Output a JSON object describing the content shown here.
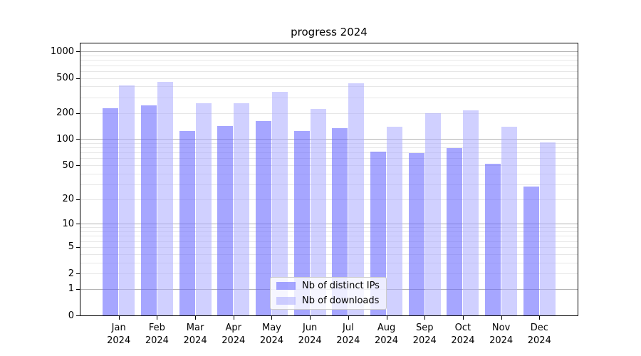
{
  "figure_title": "progress 2024",
  "chart_data": {
    "type": "bar",
    "title": "progress 2024",
    "categories": [
      "Jan 2024",
      "Feb 2024",
      "Mar 2024",
      "Apr 2024",
      "May 2024",
      "Jun 2024",
      "Jul 2024",
      "Aug 2024",
      "Sep 2024",
      "Oct 2024",
      "Nov 2024",
      "Dec 2024"
    ],
    "series": [
      {
        "name": "Nb of distinct IPs",
        "color": "rgba(102,102,255,0.58)",
        "values": [
          225,
          245,
          125,
          141,
          162,
          125,
          134,
          72,
          69,
          79,
          52,
          28
        ]
      },
      {
        "name": "Nb of downloads",
        "color": "rgba(170,170,255,0.55)",
        "values": [
          415,
          448,
          258,
          258,
          350,
          222,
          437,
          140,
          200,
          212,
          140,
          92
        ]
      }
    ],
    "xlabel": "",
    "ylabel": "",
    "y_axis": {
      "scale": "log(value+1)",
      "tick_values": [
        1000,
        500,
        200,
        100,
        50,
        20,
        10,
        5,
        2,
        1,
        0
      ],
      "tick_labels": [
        "1000",
        "500",
        "200",
        "100",
        "50",
        "20",
        "10",
        "5",
        "2",
        "1",
        "0"
      ],
      "major_gridlines": [
        1,
        10,
        100,
        1000
      ],
      "minor_gridlines": [
        2,
        3,
        4,
        5,
        6,
        7,
        8,
        9,
        20,
        30,
        40,
        50,
        60,
        70,
        80,
        90,
        200,
        300,
        400,
        500,
        600,
        700,
        800,
        900
      ],
      "range": [
        0,
        1000
      ]
    },
    "grid": true,
    "legend_position": "lower center",
    "colors": {
      "major_grid": "#b3b3b3",
      "minor_grid": "#e7e7e7",
      "spine": "#000000",
      "legend_border": "#cccccc",
      "legend_background": "rgba(255,255,255,0.8)"
    }
  }
}
